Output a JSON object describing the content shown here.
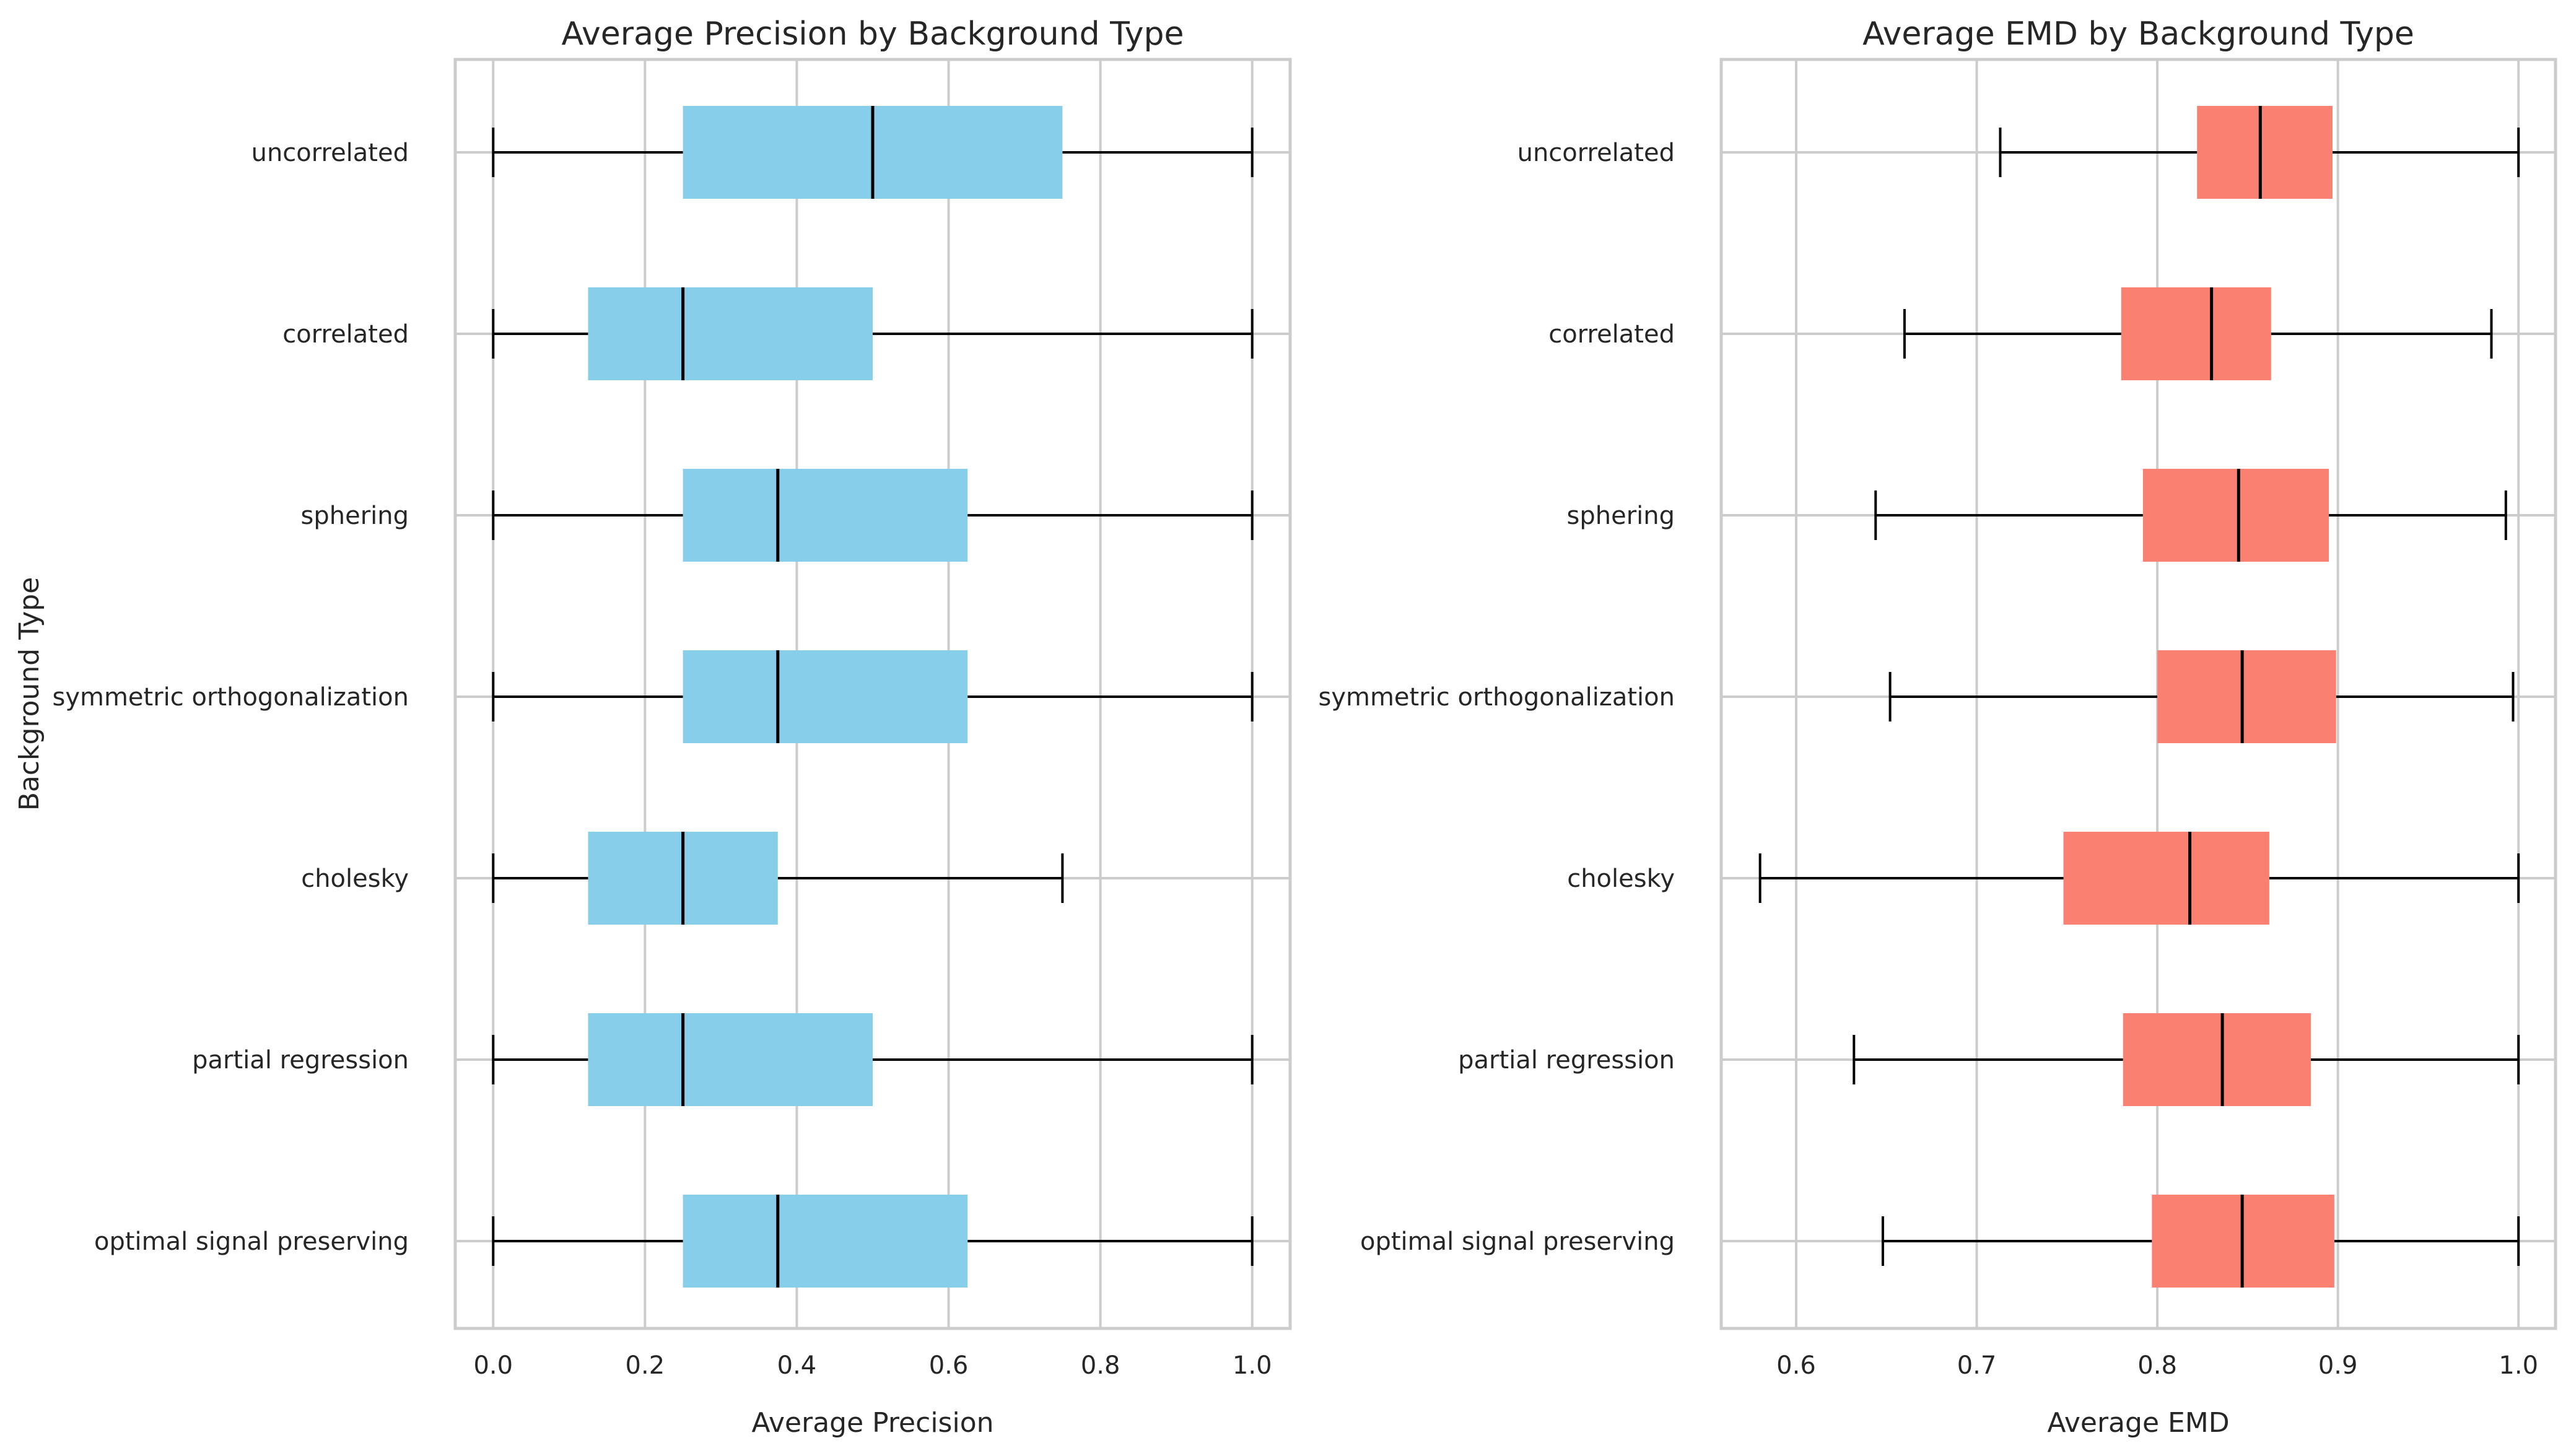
{
  "chart_data": [
    {
      "type": "boxplot",
      "orientation": "horizontal",
      "title": "Average Precision by Background Type",
      "xlabel": "Average Precision",
      "ylabel": "Background Type",
      "xlim": [
        -0.05,
        1.05
      ],
      "xticks": [
        0.0,
        0.2,
        0.4,
        0.6,
        0.8,
        1.0
      ],
      "xtick_labels": [
        "0.0",
        "0.2",
        "0.4",
        "0.6",
        "0.8",
        "1.0"
      ],
      "grid": true,
      "box_color": "#87CEEB",
      "categories": [
        "uncorrelated",
        "correlated",
        "sphering",
        "symmetric orthogonalization",
        "cholesky",
        "partial regression",
        "optimal signal preserving"
      ],
      "boxes": [
        {
          "min": 0.0,
          "q1": 0.25,
          "median": 0.5,
          "q3": 0.75,
          "max": 1.0
        },
        {
          "min": 0.0,
          "q1": 0.125,
          "median": 0.25,
          "q3": 0.5,
          "max": 1.0
        },
        {
          "min": 0.0,
          "q1": 0.25,
          "median": 0.375,
          "q3": 0.625,
          "max": 1.0
        },
        {
          "min": 0.0,
          "q1": 0.25,
          "median": 0.375,
          "q3": 0.625,
          "max": 1.0
        },
        {
          "min": 0.0,
          "q1": 0.125,
          "median": 0.25,
          "q3": 0.375,
          "max": 0.75
        },
        {
          "min": 0.0,
          "q1": 0.125,
          "median": 0.25,
          "q3": 0.5,
          "max": 1.0
        },
        {
          "min": 0.0,
          "q1": 0.25,
          "median": 0.375,
          "q3": 0.625,
          "max": 1.0
        }
      ]
    },
    {
      "type": "boxplot",
      "orientation": "horizontal",
      "title": "Average EMD by Background Type",
      "xlabel": "Average EMD",
      "ylabel": "",
      "xlim": [
        0.5585,
        1.0205
      ],
      "xticks": [
        0.6,
        0.7,
        0.8,
        0.9,
        1.0
      ],
      "xtick_labels": [
        "0.6",
        "0.7",
        "0.8",
        "0.9",
        "1.0"
      ],
      "grid": true,
      "box_color": "#FA8072",
      "categories": [
        "uncorrelated",
        "correlated",
        "sphering",
        "symmetric orthogonalization",
        "cholesky",
        "partial regression",
        "optimal signal preserving"
      ],
      "boxes": [
        {
          "min": 0.713,
          "q1": 0.822,
          "median": 0.857,
          "q3": 0.897,
          "max": 1.0
        },
        {
          "min": 0.66,
          "q1": 0.78,
          "median": 0.83,
          "q3": 0.863,
          "max": 0.985
        },
        {
          "min": 0.644,
          "q1": 0.792,
          "median": 0.845,
          "q3": 0.895,
          "max": 0.993
        },
        {
          "min": 0.652,
          "q1": 0.8,
          "median": 0.847,
          "q3": 0.899,
          "max": 0.997
        },
        {
          "min": 0.58,
          "q1": 0.748,
          "median": 0.818,
          "q3": 0.862,
          "max": 1.0
        },
        {
          "min": 0.632,
          "q1": 0.781,
          "median": 0.836,
          "q3": 0.885,
          "max": 1.0
        },
        {
          "min": 0.648,
          "q1": 0.797,
          "median": 0.847,
          "q3": 0.898,
          "max": 1.0
        }
      ]
    }
  ]
}
